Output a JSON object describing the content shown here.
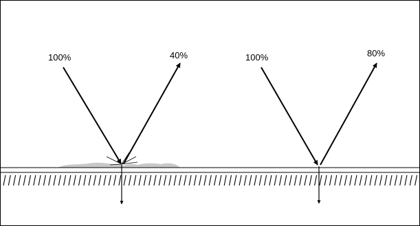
{
  "diagram": {
    "left": {
      "incident_label": "100%",
      "reflected_label": "40%"
    },
    "right": {
      "incident_label": "100%",
      "reflected_label": "80%"
    }
  }
}
